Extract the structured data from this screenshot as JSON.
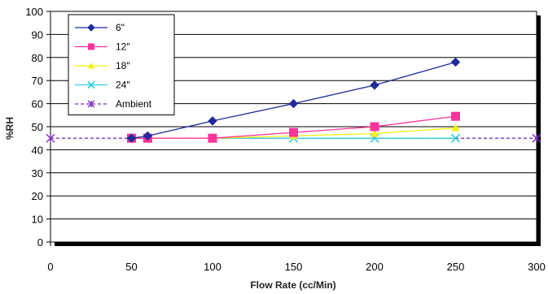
{
  "chart_data": {
    "type": "line",
    "title": "",
    "xlabel": "Flow Rate (cc/Min)",
    "ylabel": "%RH",
    "xlim": [
      0,
      300
    ],
    "ylim": [
      0,
      100
    ],
    "xticks": [
      0,
      50,
      100,
      150,
      200,
      250,
      300
    ],
    "yticks": [
      0,
      10,
      20,
      30,
      40,
      50,
      60,
      70,
      80,
      90,
      100
    ],
    "grid": "horizontal",
    "legend_position": "top-left",
    "series": [
      {
        "name": "6\"",
        "color": "#1F2A9E",
        "marker": "diamond",
        "dash": "solid",
        "x": [
          50,
          60,
          100,
          150,
          200,
          250
        ],
        "y": [
          45,
          46,
          52.5,
          60,
          68,
          78
        ]
      },
      {
        "name": "12\"",
        "color": "#FF3399",
        "marker": "square",
        "dash": "solid",
        "x": [
          50,
          60,
          100,
          150,
          200,
          250
        ],
        "y": [
          45,
          45,
          45,
          47.5,
          50,
          54.5
        ]
      },
      {
        "name": "18\"",
        "color": "#F2F20A",
        "marker": "triangle",
        "dash": "solid",
        "x": [
          50,
          60,
          100,
          150,
          200,
          250
        ],
        "y": [
          45,
          45,
          45,
          46,
          47,
          49.5
        ]
      },
      {
        "name": "24\"",
        "color": "#33CCE0",
        "marker": "x",
        "dash": "solid",
        "x": [
          50,
          60,
          100,
          150,
          200,
          250
        ],
        "y": [
          45,
          45,
          45,
          45,
          45,
          45
        ]
      },
      {
        "name": "Ambient",
        "color": "#7B2FBE",
        "marker": "star",
        "dash": "dashed",
        "x": [
          0,
          300
        ],
        "y": [
          45,
          45
        ]
      }
    ]
  }
}
